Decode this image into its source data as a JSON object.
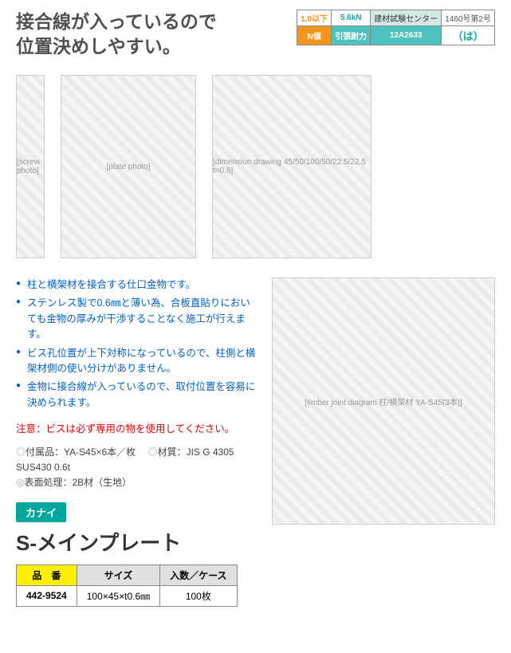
{
  "headline_l1": "接合線が入っているので",
  "headline_l2": "位置決めしやすい。",
  "spec": {
    "r1c1": "1.0以下",
    "r1c2": "5.6kN",
    "r1c3": "建材試験センター",
    "r1c4": "1460号第2号",
    "r2c1": "N値",
    "r2c2": "引張耐力",
    "r2c3": "12A2633",
    "r2c4": "（は）"
  },
  "bullets": [
    "柱と横架材を接合する仕口金物です。",
    "ステンレス製で0.6㎜と薄い為、合板直貼りにおいても金物の厚みが干渉することなく施工が行えます。",
    "ビス孔位置が上下対称になっているので、柱側と横架材側の使い分けがありません。",
    "金物に接合線が入っているので、取付位置を容易に決められます。"
  ],
  "caution": "注意：ビスは必ず専用の物を使用してください。",
  "meta": {
    "accessory_label": "付属品：",
    "accessory": "YA-S45×6本／枚",
    "material_label": "材質：",
    "material": "JIS G 4305 SUS430 0.6t",
    "finish_label": "表面処理：",
    "finish": "2B材（生地）"
  },
  "brand": "カナイ",
  "product": "S-メインプレート",
  "sku": {
    "h1": "品　番",
    "h2": "サイズ",
    "h3": "入数／ケース",
    "code": "442-9524",
    "size": "100×45×t0.6㎜",
    "qty": "100枚"
  },
  "placeholders": {
    "screw": "[screw photo]",
    "plate": "[plate photo]",
    "dims": "[dimension drawing 45/50/100/50/22.5/22.5 t=0.6]",
    "assembly": "[timber joint diagram 柱/横架材 YA-S45(3本)]"
  }
}
